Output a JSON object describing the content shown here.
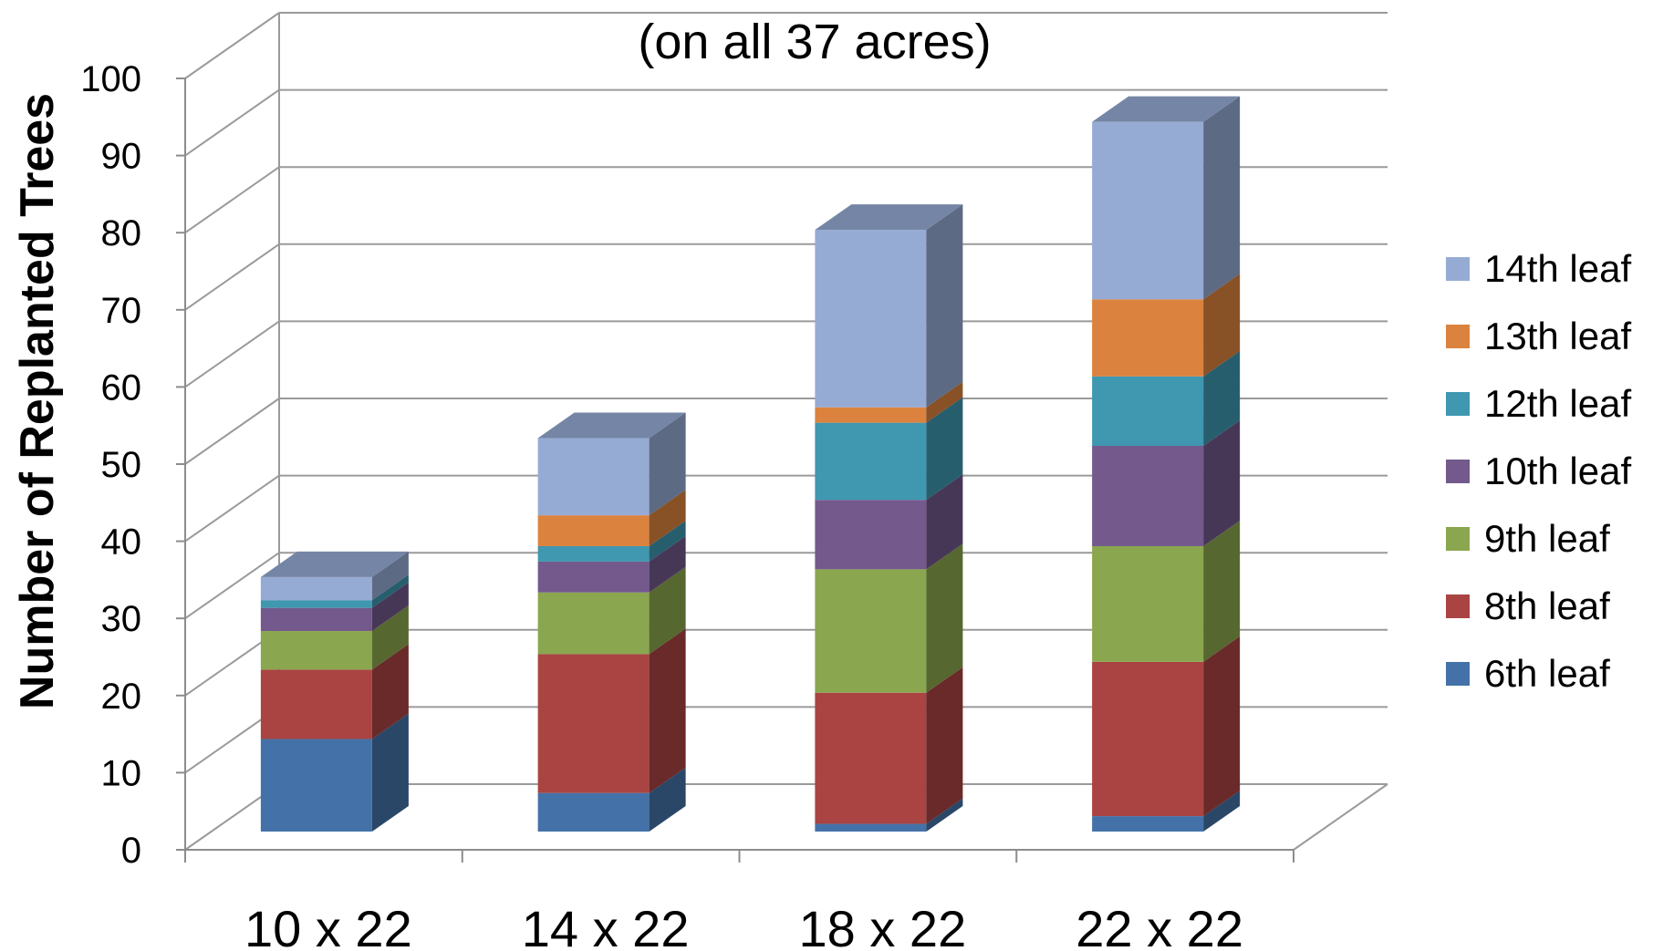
{
  "chart_data": {
    "type": "bar",
    "stacked": true,
    "three_d": true,
    "title": "(on all 37 acres)",
    "xlabel": "",
    "ylabel": "Number of Replanted Trees",
    "ylim": [
      0,
      100
    ],
    "yticks": [
      0,
      10,
      20,
      30,
      40,
      50,
      60,
      70,
      80,
      90,
      100
    ],
    "grid": true,
    "legend_position": "right",
    "categories": [
      "10 x 22",
      "14 x 22",
      "18 x 22",
      "22 x 22"
    ],
    "series": [
      {
        "name": "6th leaf",
        "color": "#4472A8",
        "values": [
          12,
          5,
          1,
          2
        ]
      },
      {
        "name": "8th leaf",
        "color": "#A94442",
        "values": [
          9,
          18,
          17,
          20
        ]
      },
      {
        "name": "9th leaf",
        "color": "#8AA64E",
        "values": [
          5,
          8,
          16,
          15
        ]
      },
      {
        "name": "10th leaf",
        "color": "#73598C",
        "values": [
          3,
          4,
          9,
          13
        ]
      },
      {
        "name": "12th leaf",
        "color": "#3F97B0",
        "values": [
          1,
          2,
          10,
          9
        ]
      },
      {
        "name": "13th leaf",
        "color": "#DB823E",
        "values": [
          0,
          4,
          2,
          10
        ]
      },
      {
        "name": "14th leaf",
        "color": "#96ABD4",
        "values": [
          3,
          10,
          23,
          23
        ]
      }
    ],
    "legend_order": [
      "14th leaf",
      "13th leaf",
      "12th leaf",
      "10th leaf",
      "9th leaf",
      "8th leaf",
      "6th leaf"
    ]
  }
}
